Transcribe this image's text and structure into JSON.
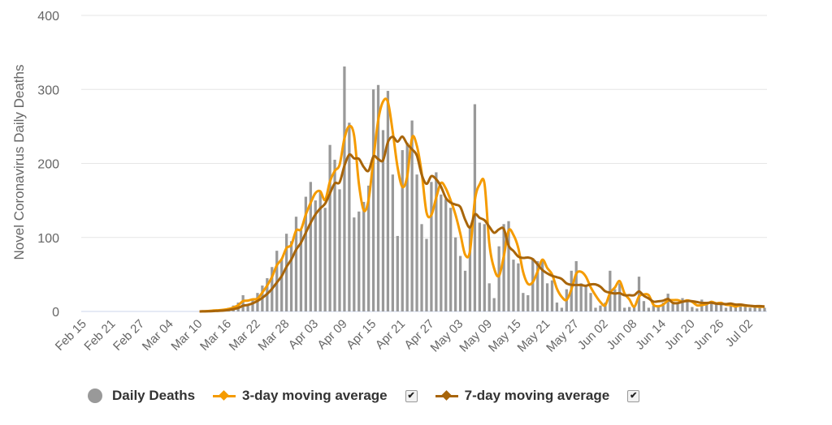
{
  "chart_data": {
    "type": "bar",
    "title": "",
    "xlabel": "",
    "ylabel": "Novel Coronavirus Daily Deaths",
    "ylim": [
      0,
      400
    ],
    "yticks": [
      0,
      100,
      200,
      300,
      400
    ],
    "grid": true,
    "legend_position": "bottom",
    "start_date": "Feb 15",
    "xtick_labels": [
      "Feb 15",
      "Feb 21",
      "Feb 27",
      "Mar 04",
      "Mar 10",
      "Mar 16",
      "Mar 22",
      "Mar 28",
      "Apr 03",
      "Apr 09",
      "Apr 15",
      "Apr 21",
      "Apr 27",
      "May 03",
      "May 09",
      "May 15",
      "May 21",
      "May 27",
      "Jun 02",
      "Jun 08",
      "Jun 14",
      "Jun 20",
      "Jun 26",
      "Jul 02"
    ],
    "xtick_every_days": 6,
    "series": [
      {
        "name": "Daily Deaths",
        "type": "bar",
        "color": "#999999",
        "values": [
          0,
          0,
          0,
          0,
          0,
          0,
          0,
          0,
          0,
          0,
          0,
          0,
          0,
          0,
          0,
          0,
          0,
          0,
          0,
          0,
          0,
          0,
          0,
          0,
          0,
          1,
          1,
          2,
          2,
          3,
          5,
          8,
          12,
          22,
          10,
          17,
          25,
          35,
          45,
          60,
          82,
          70,
          105,
          95,
          128,
          110,
          155,
          175,
          150,
          162,
          140,
          225,
          205,
          165,
          331,
          255,
          127,
          135,
          148,
          170,
          300,
          306,
          245,
          298,
          185,
          102,
          218,
          228,
          258,
          185,
          118,
          98,
          175,
          188,
          158,
          152,
          140,
          100,
          75,
          55,
          115,
          280,
          120,
          118,
          38,
          18,
          88,
          118,
          122,
          70,
          65,
          25,
          22,
          72,
          68,
          70,
          38,
          42,
          12,
          5,
          30,
          55,
          68,
          38,
          35,
          25,
          5,
          8,
          12,
          55,
          30,
          38,
          5,
          6,
          8,
          47,
          14,
          5,
          8,
          8,
          12,
          24,
          10,
          12,
          18,
          15,
          6,
          4,
          16,
          10,
          13,
          10,
          12,
          5,
          9,
          6,
          10,
          7,
          5,
          8,
          6,
          5
        ]
      },
      {
        "name": "3-day moving average",
        "type": "line",
        "color": "#F59B00",
        "window": 3,
        "checked": true
      },
      {
        "name": "7-day moving average",
        "type": "line",
        "color": "#A8650A",
        "window": 7,
        "checked": true
      }
    ]
  },
  "legend": {
    "daily_label": "Daily Deaths",
    "ma3_label": "3-day moving average",
    "ma7_label": "7-day moving average",
    "check_mark": "✔"
  }
}
